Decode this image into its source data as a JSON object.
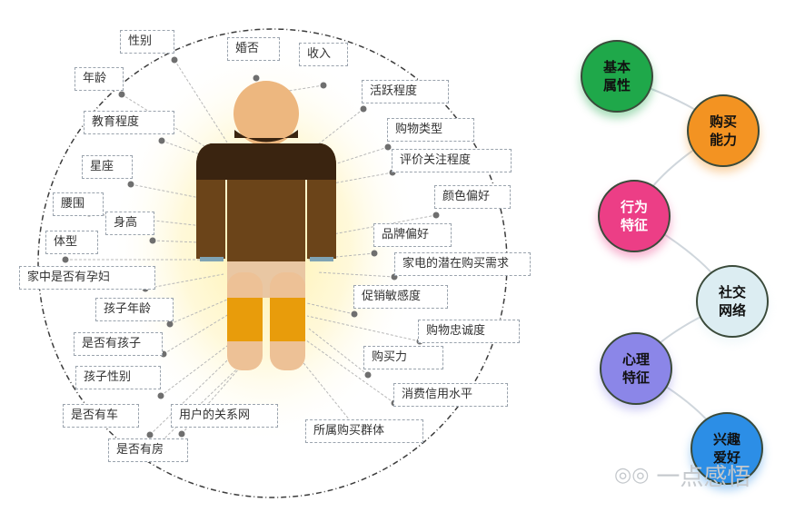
{
  "figure": {
    "attributes": [
      {
        "id": "gender",
        "label": "性别"
      },
      {
        "id": "marital",
        "label": "婚否"
      },
      {
        "id": "income",
        "label": "收入"
      },
      {
        "id": "age",
        "label": "年龄"
      },
      {
        "id": "activity",
        "label": "活跃程度"
      },
      {
        "id": "education",
        "label": "教育程度"
      },
      {
        "id": "purchase_type",
        "label": "购物类型"
      },
      {
        "id": "review_attention",
        "label": "评价关注程度"
      },
      {
        "id": "zodiac",
        "label": "星座"
      },
      {
        "id": "color_pref",
        "label": "颜色偏好"
      },
      {
        "id": "waist",
        "label": "腰围"
      },
      {
        "id": "height",
        "label": "身高"
      },
      {
        "id": "brand_pref",
        "label": "品牌偏好"
      },
      {
        "id": "body_type",
        "label": "体型"
      },
      {
        "id": "appliance_need",
        "label": "家电的潜在购买需求"
      },
      {
        "id": "pregnant",
        "label": "家中是否有孕妇"
      },
      {
        "id": "promo_sensitivity",
        "label": "促销敏感度"
      },
      {
        "id": "child_age",
        "label": "孩子年龄"
      },
      {
        "id": "loyalty",
        "label": "购物忠诚度"
      },
      {
        "id": "has_child",
        "label": "是否有孩子"
      },
      {
        "id": "purchasing_power",
        "label": "购买力"
      },
      {
        "id": "child_gender",
        "label": "孩子性别"
      },
      {
        "id": "consumer_credit",
        "label": "消费信用水平"
      },
      {
        "id": "has_car",
        "label": "是否有车"
      },
      {
        "id": "relation_network",
        "label": "用户的关系网"
      },
      {
        "id": "buyer_group",
        "label": "所属购买群体"
      },
      {
        "id": "has_house",
        "label": "是否有房"
      }
    ],
    "categories": [
      {
        "id": "basic",
        "label": "基本\n属性",
        "color": "#1fa84a",
        "text_color": "#111111"
      },
      {
        "id": "purchasing",
        "label": "购买\n能力",
        "color": "#f39322",
        "text_color": "#111111"
      },
      {
        "id": "behavior",
        "label": "行为\n特征",
        "color": "#ec3e86",
        "text_color": "#ffffff"
      },
      {
        "id": "social",
        "label": "社交\n网络",
        "color": "#dcedf2",
        "text_color": "#111111"
      },
      {
        "id": "psychology",
        "label": "心理\n特征",
        "color": "#8b86e8",
        "text_color": "#111111"
      },
      {
        "id": "interests",
        "label": "兴趣\n爱好",
        "color": "#2c8ee6",
        "text_color": "#111111"
      }
    ],
    "figure_colors": {
      "head": "#edb77f",
      "shirt": "#5e3d16",
      "shirt_top": "#3a2410",
      "legs": "#e9c7a3",
      "shorts": "#e89c0b",
      "glow": "#fff1a8"
    }
  },
  "watermark": {
    "icon": "wechat-icon",
    "text": "一点感悟"
  }
}
